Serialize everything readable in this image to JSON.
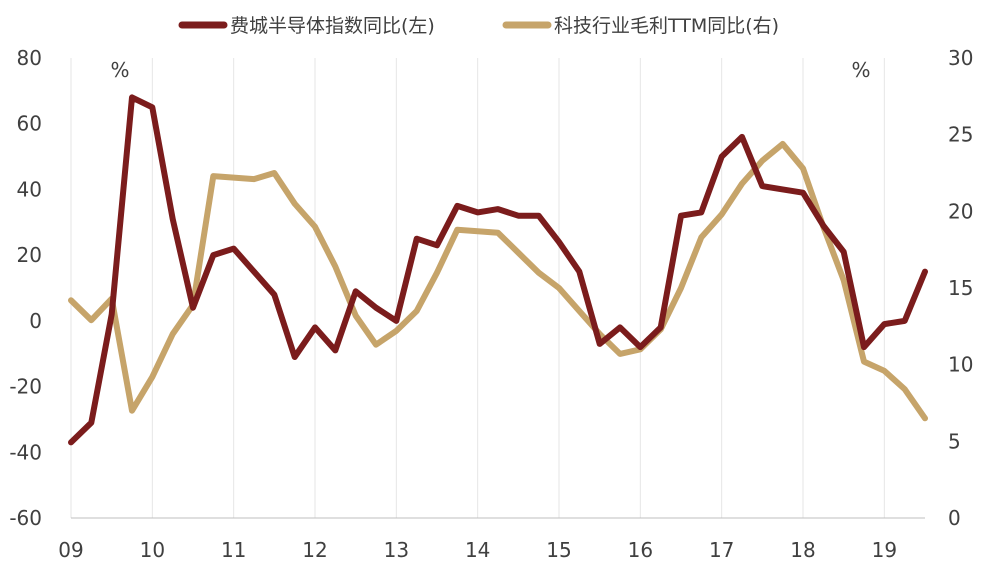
{
  "chart_data": {
    "type": "line",
    "title": "",
    "xlabel": "",
    "ylabel": "",
    "y_unit_left": "%",
    "y_unit_right": "%",
    "x_tick_labels": [
      "09",
      "10",
      "11",
      "12",
      "13",
      "14",
      "15",
      "16",
      "17",
      "18",
      "19"
    ],
    "x_tick_values": [
      2009,
      2010,
      2011,
      2012,
      2013,
      2014,
      2015,
      2016,
      2017,
      2018,
      2019
    ],
    "xlim": [
      2009,
      2019.6
    ],
    "ylim_left": [
      -60,
      80
    ],
    "ylim_right": [
      0,
      30
    ],
    "y_ticks_left": [
      "80",
      "60",
      "40",
      "20",
      "0",
      "-20",
      "-40",
      "-60"
    ],
    "y_ticks_right": [
      "30",
      "25",
      "20",
      "15",
      "10",
      "5",
      "0"
    ],
    "grid": "vertical",
    "legend_position": "top",
    "series": [
      {
        "name": "费城半导体指数同比(左)",
        "axis": "left",
        "color": "#7b1c1c",
        "x": [
          2009.0,
          2009.25,
          2009.5,
          2009.75,
          2010.0,
          2010.25,
          2010.5,
          2010.75,
          2011.0,
          2011.25,
          2011.5,
          2011.75,
          2012.0,
          2012.25,
          2012.5,
          2012.75,
          2013.0,
          2013.25,
          2013.5,
          2013.75,
          2014.0,
          2014.25,
          2014.5,
          2014.75,
          2015.0,
          2015.25,
          2015.5,
          2015.75,
          2016.0,
          2016.25,
          2016.5,
          2016.75,
          2017.0,
          2017.25,
          2017.5,
          2017.75,
          2018.0,
          2018.25,
          2018.5,
          2018.75,
          2019.0,
          2019.25,
          2019.5
        ],
        "values": [
          -37,
          -31,
          2,
          68,
          65,
          31,
          4,
          20,
          22,
          15,
          8,
          -11,
          -2,
          -9,
          9,
          4,
          0,
          25,
          23,
          35,
          33,
          34,
          32,
          32,
          24,
          15,
          -7,
          -2,
          -8,
          -2,
          32,
          33,
          50,
          56,
          41,
          40,
          39,
          29,
          21,
          -8,
          -1,
          0,
          15
        ]
      },
      {
        "name": "科技行业毛利TTM同比(右)",
        "axis": "right",
        "color": "#c6a46a",
        "x": [
          2009.0,
          2009.25,
          2009.5,
          2009.75,
          2010.0,
          2010.25,
          2010.5,
          2010.75,
          2011.0,
          2011.25,
          2011.5,
          2011.75,
          2012.0,
          2012.25,
          2012.5,
          2012.75,
          2013.0,
          2013.25,
          2013.5,
          2013.75,
          2014.0,
          2014.25,
          2014.5,
          2014.75,
          2015.0,
          2015.25,
          2015.5,
          2015.75,
          2016.0,
          2016.25,
          2016.5,
          2016.75,
          2017.0,
          2017.25,
          2017.5,
          2017.75,
          2018.0,
          2018.25,
          2018.5,
          2018.75,
          2019.0,
          2019.25,
          2019.5
        ],
        "values": [
          14.2,
          12.9,
          14.3,
          7.0,
          9.2,
          12.0,
          13.9,
          22.3,
          22.2,
          22.1,
          22.5,
          20.5,
          19.0,
          16.4,
          13.2,
          11.3,
          12.2,
          13.5,
          16.0,
          18.8,
          18.7,
          18.6,
          17.3,
          16.0,
          15.0,
          13.5,
          12.0,
          10.7,
          11.0,
          12.3,
          15.0,
          18.3,
          19.8,
          21.8,
          23.3,
          24.4,
          22.8,
          19.0,
          15.5,
          10.2,
          9.6,
          8.4,
          6.5
        ]
      }
    ]
  }
}
